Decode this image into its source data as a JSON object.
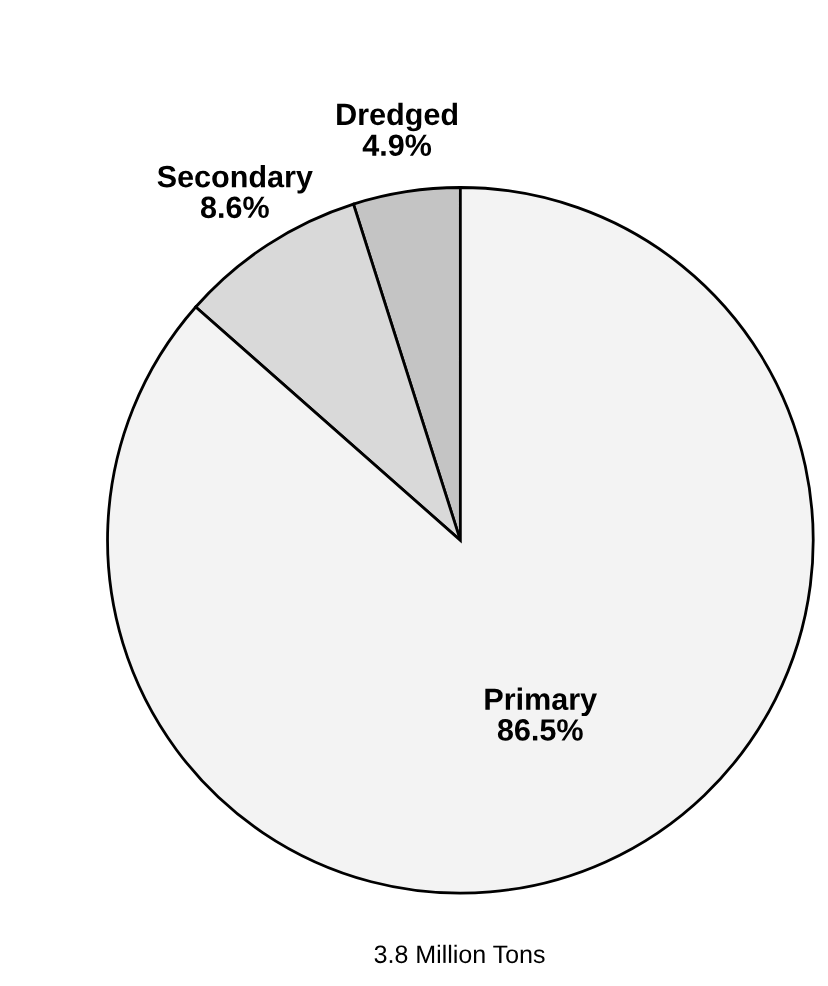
{
  "chart_data": {
    "type": "pie",
    "categories": [
      "Dredged",
      "Secondary",
      "Primary"
    ],
    "values": [
      4.9,
      8.6,
      86.5
    ],
    "colors": [
      "#c4c4c4",
      "#d9d9d9",
      "#f3f3f3"
    ],
    "value_labels": [
      "4.9%",
      "8.6%",
      "86.5%"
    ],
    "legend": false,
    "annotations": [
      "3.8 Million Tons"
    ]
  }
}
